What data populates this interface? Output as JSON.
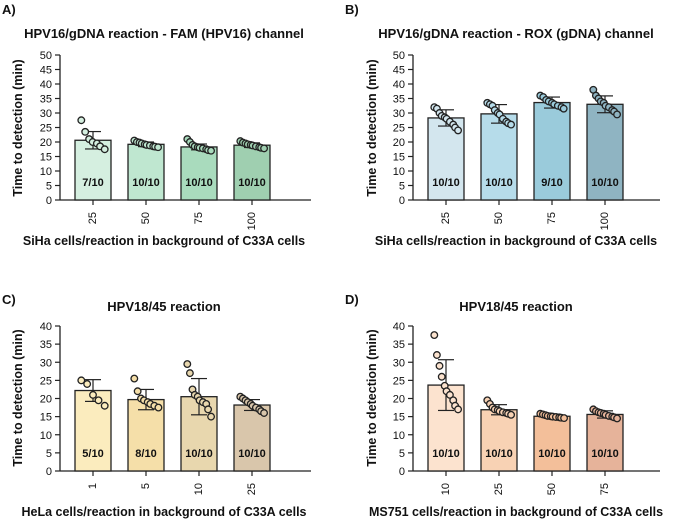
{
  "figure": {
    "panel_labels": [
      "A)",
      "B)",
      "C)",
      "D)"
    ]
  },
  "chart_data": [
    {
      "type": "bar",
      "panel": "A)",
      "title": "HPV16/gDNA reaction - FAM (HPV16) channel",
      "xlabel": "SiHa cells/reaction in background of C33A cells",
      "ylabel": "Time to detection (min)",
      "ylim": [
        0,
        50
      ],
      "yticks": [
        0,
        5,
        10,
        15,
        20,
        25,
        30,
        35,
        40,
        45,
        50
      ],
      "categories": [
        "25",
        "50",
        "75",
        "100"
      ],
      "values": [
        20.6,
        19.2,
        18.3,
        18.9
      ],
      "errors": [
        3.0,
        0.8,
        1.0,
        0.8
      ],
      "fractions": [
        "7/10",
        "10/10",
        "10/10",
        "10/10"
      ],
      "colors": [
        "#d5efe0",
        "#bfe7d0",
        "#a9dbbd",
        "#9fcfb0"
      ],
      "points": [
        [
          27.5,
          23.5,
          21,
          20,
          19.5,
          18.5,
          17.5
        ],
        [
          20.5,
          20,
          19.8,
          19.5,
          19.2,
          19,
          18.8,
          18.5,
          18.4,
          18.2
        ],
        [
          21,
          20,
          19,
          18.5,
          18.2,
          18,
          17.8,
          17.5,
          17.2,
          17
        ],
        [
          20.3,
          19.8,
          19.5,
          19.2,
          19,
          18.8,
          18.5,
          18.2,
          18,
          17.8
        ]
      ]
    },
    {
      "type": "bar",
      "panel": "B)",
      "title": "HPV16/gDNA reaction - ROX (gDNA) channel",
      "xlabel": "SiHa cells/reaction in background of C33A cells",
      "ylabel": "Time to detection (min)",
      "ylim": [
        0,
        50
      ],
      "yticks": [
        0,
        5,
        10,
        15,
        20,
        25,
        30,
        35,
        40,
        45,
        50
      ],
      "categories": [
        "25",
        "50",
        "75",
        "100"
      ],
      "values": [
        28.3,
        29.7,
        33.6,
        33.0
      ],
      "errors": [
        2.8,
        3.2,
        1.9,
        2.9
      ],
      "fractions": [
        "10/10",
        "10/10",
        "9/10",
        "10/10"
      ],
      "colors": [
        "#d3e6ee",
        "#b6dcea",
        "#9acbdb",
        "#8fb4c2"
      ],
      "points": [
        [
          32,
          31.5,
          30,
          29,
          28.5,
          28,
          27,
          26,
          25,
          24
        ],
        [
          33.5,
          33,
          32.5,
          31,
          30,
          29.5,
          28,
          27,
          26.5,
          26
        ],
        [
          36,
          35.5,
          34.5,
          34,
          33.5,
          33,
          32.5,
          32,
          31.5
        ],
        [
          38,
          36,
          35,
          34,
          33.5,
          32.5,
          32,
          31,
          30.5,
          29.5
        ]
      ]
    },
    {
      "type": "bar",
      "panel": "C)",
      "title": "HPV18/45 reaction",
      "xlabel": "HeLa cells/reaction in background of C33A cells",
      "ylabel": "Time to detection (min)",
      "ylim": [
        0,
        40
      ],
      "yticks": [
        0,
        5,
        10,
        15,
        20,
        25,
        30,
        35,
        40
      ],
      "categories": [
        "1",
        "5",
        "10",
        "25"
      ],
      "values": [
        22.2,
        19.7,
        20.5,
        18.2
      ],
      "errors": [
        3.0,
        2.8,
        5.0,
        1.5
      ],
      "fractions": [
        "5/10",
        "8/10",
        "10/10",
        "10/10"
      ],
      "colors": [
        "#fbecbe",
        "#f5dfa9",
        "#e8d7ae",
        "#d9c6ab"
      ],
      "points": [
        [
          25,
          24,
          21,
          19.5,
          18
        ],
        [
          25.5,
          22,
          20,
          19.5,
          19,
          18.5,
          18,
          17.5
        ],
        [
          29.5,
          27,
          22.5,
          21,
          20.5,
          19.5,
          19,
          18.5,
          17,
          15
        ],
        [
          20.5,
          20,
          19.5,
          19,
          18.5,
          18,
          17.5,
          17,
          16.5,
          16
        ]
      ]
    },
    {
      "type": "bar",
      "panel": "D)",
      "title": "HPV18/45 reaction",
      "xlabel": "MS751 cells/reaction in background of C33A cells",
      "ylabel": "Time to detection (min)",
      "ylim": [
        0,
        40
      ],
      "yticks": [
        0,
        5,
        10,
        15,
        20,
        25,
        30,
        35,
        40
      ],
      "categories": [
        "10",
        "25",
        "50",
        "75"
      ],
      "values": [
        23.7,
        16.9,
        15.1,
        15.6
      ],
      "errors": [
        7.0,
        1.4,
        0.5,
        1.0
      ],
      "fractions": [
        "10/10",
        "10/10",
        "10/10",
        "10/10"
      ],
      "colors": [
        "#fce3cf",
        "#f8d2b4",
        "#f3bf9a",
        "#e6b39a"
      ],
      "points": [
        [
          37.5,
          32,
          29,
          26,
          23.5,
          22,
          21,
          19.5,
          18,
          17
        ],
        [
          19.5,
          18.5,
          17.5,
          17,
          16.8,
          16.5,
          16.2,
          16,
          15.8,
          15.5
        ],
        [
          15.8,
          15.6,
          15.4,
          15.2,
          15.1,
          15,
          14.9,
          14.8,
          14.7,
          14.6
        ],
        [
          17,
          16.5,
          16.2,
          16,
          15.8,
          15.5,
          15.2,
          15,
          14.8,
          14.5
        ]
      ]
    }
  ]
}
